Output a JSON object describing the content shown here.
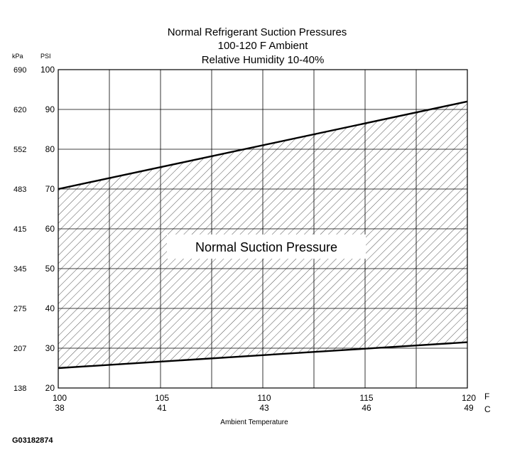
{
  "chart_data": {
    "type": "area",
    "title_lines": [
      "Normal  Refrigerant  Suction  Pressures",
      "100-120 F Ambient",
      "Relative Humidity 10-40%"
    ],
    "xlabel": "Ambient Temperature",
    "x_unit_labels": {
      "primary": "F",
      "secondary": "C"
    },
    "y_unit_labels": {
      "primary": "PSI",
      "secondary": "kPa"
    },
    "xlim": [
      100,
      120
    ],
    "ylim": [
      20,
      100
    ],
    "x_ticks": [
      {
        "value": 100,
        "label_f": "100",
        "label_c": "38"
      },
      {
        "value": 105,
        "label_f": "105",
        "label_c": "41"
      },
      {
        "value": 110,
        "label_f": "110",
        "label_c": "43"
      },
      {
        "value": 115,
        "label_f": "115",
        "label_c": "46"
      },
      {
        "value": 120,
        "label_f": "120",
        "label_c": "49"
      }
    ],
    "x_minor_grid": [
      102.5,
      107.5,
      112.5,
      117.5
    ],
    "y_ticks": [
      {
        "value": 100,
        "label_psi": "100",
        "label_kpa": "690"
      },
      {
        "value": 90,
        "label_psi": "90",
        "label_kpa": "620"
      },
      {
        "value": 80,
        "label_psi": "80",
        "label_kpa": "552"
      },
      {
        "value": 70,
        "label_psi": "70",
        "label_kpa": "483"
      },
      {
        "value": 60,
        "label_psi": "60",
        "label_kpa": "415"
      },
      {
        "value": 50,
        "label_psi": "50",
        "label_kpa": "345"
      },
      {
        "value": 40,
        "label_psi": "40",
        "label_kpa": "275"
      },
      {
        "value": 30,
        "label_psi": "30",
        "label_kpa": "207"
      },
      {
        "value": 20,
        "label_psi": "20",
        "label_kpa": "138"
      }
    ],
    "grid": true,
    "band": {
      "label": "Normal Suction Pressure",
      "upper": {
        "x": [
          100,
          120
        ],
        "y": [
          70,
          92
        ]
      },
      "lower": {
        "x": [
          100,
          120
        ],
        "y": [
          25,
          31.5
        ]
      }
    }
  },
  "figure_id": "G03182874",
  "colors": {
    "line": "#000000",
    "grid": "#000000",
    "hatch": "#555555",
    "background": "#ffffff"
  }
}
